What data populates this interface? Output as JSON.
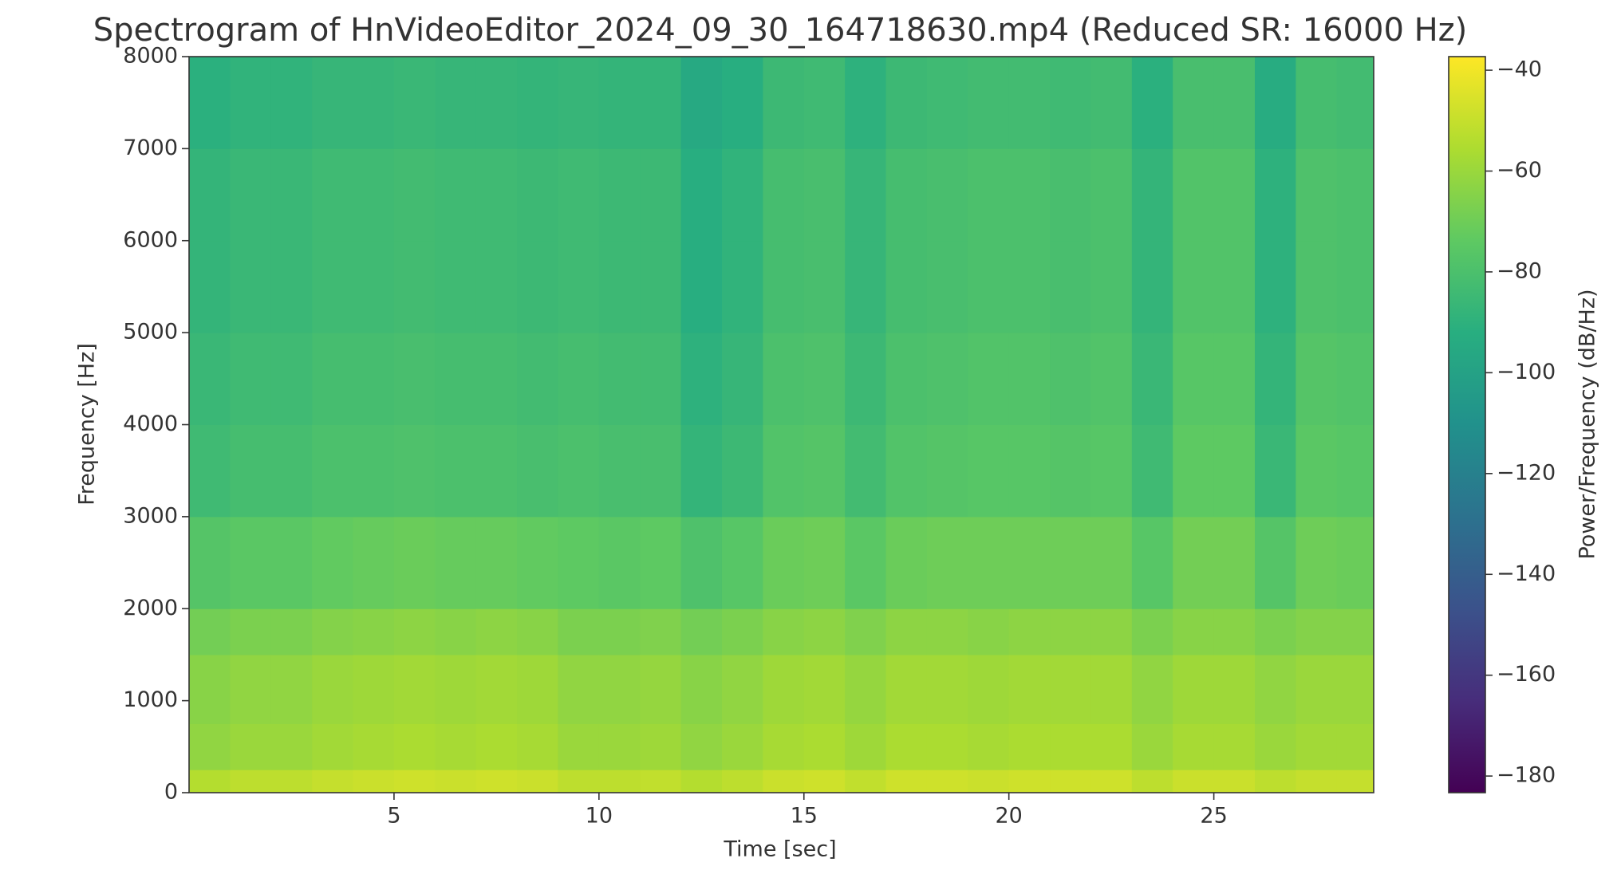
{
  "chart_data": {
    "type": "spectrogram",
    "title": "Spectrogram of HnVideoEditor_2024_09_30_164718630.mp4 (Reduced SR: 16000 Hz)",
    "x_label": "Time [sec]",
    "y_label": "Frequency [Hz]",
    "colorbar_label": "Power/Frequency (dB/Hz)",
    "colormap": "viridis",
    "xlim": [
      0,
      28.9
    ],
    "xticks": [
      5,
      10,
      15,
      20,
      25
    ],
    "ylim": [
      0,
      8000
    ],
    "yticks": [
      0,
      1000,
      2000,
      3000,
      4000,
      5000,
      6000,
      7000,
      8000
    ],
    "clim": [
      -183.3,
      -37.3
    ],
    "cticks": [
      {
        "value": -40,
        "label": "−40"
      },
      {
        "value": -60,
        "label": "−60"
      },
      {
        "value": -80,
        "label": "−80"
      },
      {
        "value": -100,
        "label": "−100"
      },
      {
        "value": -120,
        "label": "−120"
      },
      {
        "value": -140,
        "label": "−140"
      },
      {
        "value": -160,
        "label": "−160"
      },
      {
        "value": -180,
        "label": "−180"
      }
    ],
    "x_bins": [
      0,
      1,
      2,
      3,
      4,
      5,
      6,
      7,
      8,
      9,
      10,
      11,
      12,
      13,
      14,
      15,
      16,
      17,
      18,
      19,
      20,
      21,
      22,
      23,
      24,
      25,
      26,
      27,
      28,
      28.9
    ],
    "y_bins": [
      0,
      250,
      750,
      1500,
      2000,
      3000,
      4000,
      5000,
      6000,
      7000,
      8000
    ],
    "values": [
      [
        -54,
        -62,
        -64,
        -69,
        -77,
        -84,
        -86,
        -88,
        -88,
        -91
      ],
      [
        -52,
        -60,
        -62,
        -67,
        -75,
        -82,
        -84,
        -86,
        -86,
        -89
      ],
      [
        -52,
        -60,
        -62,
        -67,
        -75,
        -82,
        -84,
        -86,
        -86,
        -89
      ],
      [
        -50,
        -58,
        -60,
        -65,
        -73,
        -80,
        -82,
        -84,
        -84,
        -87
      ],
      [
        -49,
        -57,
        -59,
        -64,
        -72,
        -80,
        -82,
        -84,
        -84,
        -87
      ],
      [
        -48,
        -56,
        -58,
        -63,
        -71,
        -79,
        -81,
        -83,
        -83,
        -86
      ],
      [
        -49,
        -57,
        -59,
        -64,
        -72,
        -80,
        -82,
        -84,
        -84,
        -87
      ],
      [
        -48,
        -56,
        -58,
        -63,
        -72,
        -80,
        -82,
        -84,
        -84,
        -87
      ],
      [
        -49,
        -57,
        -59,
        -64,
        -73,
        -81,
        -83,
        -85,
        -85,
        -88
      ],
      [
        -52,
        -60,
        -62,
        -67,
        -74,
        -80,
        -82,
        -84,
        -84,
        -87
      ],
      [
        -52,
        -60,
        -62,
        -67,
        -75,
        -81,
        -83,
        -85,
        -85,
        -88
      ],
      [
        -51,
        -59,
        -61,
        -66,
        -74,
        -81,
        -83,
        -85,
        -85,
        -88
      ],
      [
        -54,
        -62,
        -64,
        -69,
        -79,
        -88,
        -90,
        -92,
        -92,
        -95
      ],
      [
        -52,
        -60,
        -62,
        -67,
        -76,
        -85,
        -87,
        -89,
        -89,
        -92
      ],
      [
        -49,
        -57,
        -59,
        -64,
        -71,
        -78,
        -80,
        -82,
        -82,
        -85
      ],
      [
        -48,
        -56,
        -58,
        -63,
        -70,
        -77,
        -79,
        -81,
        -81,
        -84
      ],
      [
        -51,
        -59,
        -61,
        -66,
        -75,
        -83,
        -85,
        -87,
        -87,
        -90
      ],
      [
        -48,
        -56,
        -58,
        -63,
        -71,
        -78,
        -80,
        -82,
        -82,
        -85
      ],
      [
        -48,
        -56,
        -58,
        -63,
        -70,
        -77,
        -79,
        -81,
        -81,
        -84
      ],
      [
        -49,
        -57,
        -59,
        -64,
        -70,
        -76,
        -78,
        -80,
        -80,
        -83
      ],
      [
        -48,
        -56,
        -58,
        -63,
        -70,
        -76,
        -78,
        -80,
        -80,
        -83
      ],
      [
        -48,
        -56,
        -58,
        -63,
        -70,
        -77,
        -79,
        -81,
        -81,
        -84
      ],
      [
        -48,
        -56,
        -58,
        -63,
        -70,
        -76,
        -78,
        -80,
        -80,
        -83
      ],
      [
        -52,
        -60,
        -62,
        -67,
        -76,
        -84,
        -86,
        -88,
        -88,
        -91
      ],
      [
        -49,
        -57,
        -59,
        -64,
        -69,
        -74,
        -76,
        -78,
        -78,
        -81
      ],
      [
        -49,
        -57,
        -59,
        -64,
        -69,
        -74,
        -76,
        -78,
        -78,
        -81
      ],
      [
        -52,
        -60,
        -62,
        -67,
        -77,
        -86,
        -88,
        -90,
        -90,
        -93
      ],
      [
        -50,
        -58,
        -60,
        -65,
        -70,
        -75,
        -77,
        -79,
        -79,
        -82
      ],
      [
        -50,
        -58,
        -60,
        -65,
        -71,
        -76,
        -78,
        -80,
        -80,
        -83
      ]
    ]
  }
}
